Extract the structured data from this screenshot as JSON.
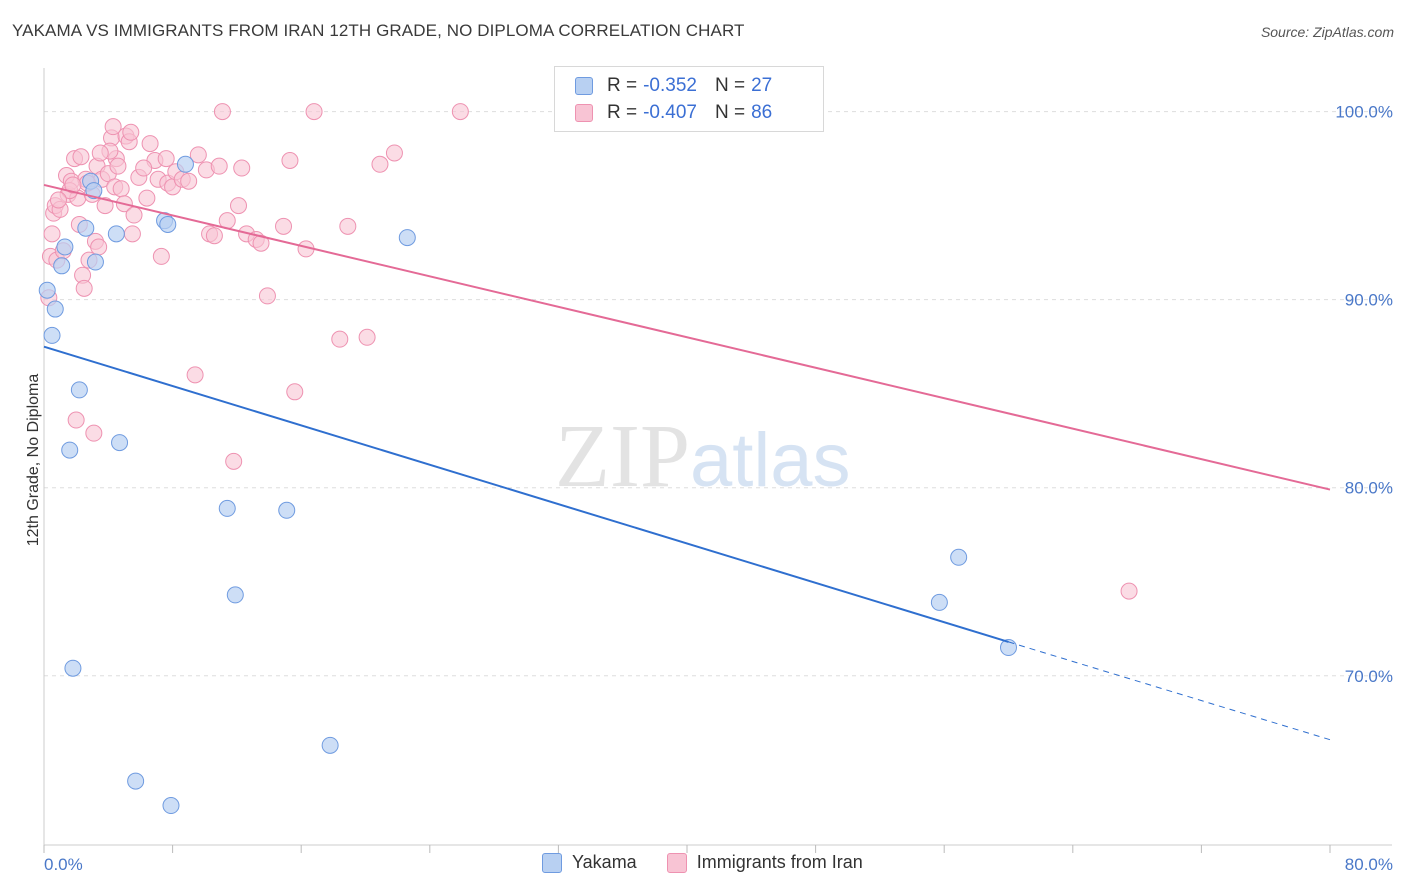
{
  "title": "YAKAMA VS IMMIGRANTS FROM IRAN 12TH GRADE, NO DIPLOMA CORRELATION CHART",
  "source": "Source: ZipAtlas.com",
  "watermark": {
    "zip": "ZIP",
    "atlas": "atlas"
  },
  "legend": {
    "rows": [
      {
        "r_label": "R =",
        "r_value": "-0.352",
        "n_label": "N =",
        "n_value": "27"
      },
      {
        "r_label": "R =",
        "r_value": "-0.407",
        "n_label": "N =",
        "n_value": "86"
      }
    ]
  },
  "colors": {
    "yakama_fill": "#b8d0f2",
    "yakama_stroke": "#6f9be0",
    "yakama_line": "#2f6fcf",
    "iran_fill": "#f8c4d4",
    "iran_stroke": "#ee92b1",
    "iran_line": "#e46a96",
    "axis_label": "#4a78c8",
    "grid": "#dddddd"
  },
  "chart_data": {
    "type": "scatter",
    "title": "YAKAMA VS IMMIGRANTS FROM IRAN 12TH GRADE, NO DIPLOMA CORRELATION CHART",
    "xlabel": "",
    "ylabel": "12th Grade, No Diploma",
    "xlim": [
      0,
      80
    ],
    "ylim": [
      61,
      102
    ],
    "x_tick_labels": [
      "0.0%",
      "80.0%"
    ],
    "y_tick_labels": [
      "70.0%",
      "80.0%",
      "90.0%",
      "100.0%"
    ],
    "y_ticks": [
      70,
      80,
      90,
      100
    ],
    "grid": true,
    "legend_position": "top-center",
    "series": [
      {
        "name": "Yakama",
        "points": [
          [
            0.2,
            90.5
          ],
          [
            0.5,
            88.1
          ],
          [
            0.7,
            89.5
          ],
          [
            1.1,
            91.8
          ],
          [
            1.3,
            92.8
          ],
          [
            1.6,
            82.0
          ],
          [
            1.8,
            70.4
          ],
          [
            2.2,
            85.2
          ],
          [
            2.6,
            93.8
          ],
          [
            2.9,
            96.3
          ],
          [
            3.1,
            95.8
          ],
          [
            3.2,
            92.0
          ],
          [
            4.5,
            93.5
          ],
          [
            4.7,
            82.4
          ],
          [
            5.7,
            64.4
          ],
          [
            7.5,
            94.2
          ],
          [
            7.7,
            94.0
          ],
          [
            7.9,
            63.1
          ],
          [
            8.8,
            97.2
          ],
          [
            11.4,
            78.9
          ],
          [
            11.9,
            74.3
          ],
          [
            15.1,
            78.8
          ],
          [
            17.8,
            66.3
          ],
          [
            22.6,
            93.3
          ],
          [
            55.7,
            73.9
          ],
          [
            56.9,
            76.3
          ],
          [
            60.0,
            71.5
          ]
        ],
        "trend": {
          "x": [
            0,
            60
          ],
          "y": [
            87.5,
            71.8
          ],
          "dashed_extension": {
            "x": [
              60,
              80
            ],
            "y": [
              71.8,
              66.6
            ]
          }
        }
      },
      {
        "name": "Immigrants from Iran",
        "points": [
          [
            0.3,
            90.1
          ],
          [
            0.4,
            92.3
          ],
          [
            0.5,
            93.5
          ],
          [
            0.6,
            94.6
          ],
          [
            0.7,
            95.0
          ],
          [
            0.8,
            92.1
          ],
          [
            1.0,
            94.8
          ],
          [
            1.2,
            92.6
          ],
          [
            1.4,
            96.6
          ],
          [
            1.5,
            95.6
          ],
          [
            1.7,
            96.3
          ],
          [
            1.9,
            97.5
          ],
          [
            2.1,
            95.4
          ],
          [
            2.3,
            97.6
          ],
          [
            2.4,
            91.3
          ],
          [
            2.5,
            90.6
          ],
          [
            2.6,
            96.4
          ],
          [
            2.8,
            92.1
          ],
          [
            3.0,
            95.6
          ],
          [
            3.1,
            82.9
          ],
          [
            3.2,
            93.1
          ],
          [
            3.3,
            97.1
          ],
          [
            3.4,
            92.8
          ],
          [
            3.6,
            96.4
          ],
          [
            3.8,
            95.0
          ],
          [
            4.0,
            96.7
          ],
          [
            4.2,
            98.6
          ],
          [
            4.3,
            99.2
          ],
          [
            4.4,
            96.0
          ],
          [
            4.5,
            97.5
          ],
          [
            4.6,
            97.1
          ],
          [
            4.8,
            95.9
          ],
          [
            5.0,
            95.1
          ],
          [
            5.1,
            98.7
          ],
          [
            5.3,
            98.4
          ],
          [
            5.4,
            98.9
          ],
          [
            5.5,
            93.5
          ],
          [
            5.6,
            94.5
          ],
          [
            6.4,
            95.4
          ],
          [
            6.6,
            98.3
          ],
          [
            6.9,
            97.4
          ],
          [
            7.1,
            96.4
          ],
          [
            7.3,
            92.3
          ],
          [
            7.6,
            97.5
          ],
          [
            7.7,
            96.2
          ],
          [
            8.0,
            96.0
          ],
          [
            8.2,
            96.8
          ],
          [
            8.6,
            96.4
          ],
          [
            9.4,
            86.0
          ],
          [
            9.6,
            97.7
          ],
          [
            10.1,
            96.9
          ],
          [
            10.3,
            93.5
          ],
          [
            10.6,
            93.4
          ],
          [
            10.9,
            97.1
          ],
          [
            11.1,
            100.0
          ],
          [
            11.4,
            94.2
          ],
          [
            11.8,
            81.4
          ],
          [
            12.1,
            95.0
          ],
          [
            12.6,
            93.5
          ],
          [
            13.2,
            93.2
          ],
          [
            13.5,
            93.0
          ],
          [
            13.9,
            90.2
          ],
          [
            14.9,
            93.9
          ],
          [
            15.3,
            97.4
          ],
          [
            15.6,
            85.1
          ],
          [
            16.3,
            92.7
          ],
          [
            16.8,
            100.0
          ],
          [
            18.4,
            87.9
          ],
          [
            18.9,
            93.9
          ],
          [
            20.1,
            88.0
          ],
          [
            20.9,
            97.2
          ],
          [
            21.8,
            97.8
          ],
          [
            25.9,
            100.0
          ],
          [
            2.0,
            83.6
          ],
          [
            1.6,
            95.8
          ],
          [
            2.7,
            96.2
          ],
          [
            4.1,
            97.9
          ],
          [
            5.9,
            96.5
          ],
          [
            3.5,
            97.8
          ],
          [
            1.8,
            96.1
          ],
          [
            0.9,
            95.3
          ],
          [
            2.2,
            94.0
          ],
          [
            67.5,
            74.5
          ],
          [
            6.2,
            97.0
          ],
          [
            9.0,
            96.3
          ],
          [
            12.3,
            97.0
          ]
        ],
        "trend": {
          "x": [
            0,
            80
          ],
          "y": [
            96.1,
            79.9
          ]
        }
      }
    ]
  },
  "bottom_legend": {
    "items": [
      "Yakama",
      "Immigrants from Iran"
    ]
  }
}
